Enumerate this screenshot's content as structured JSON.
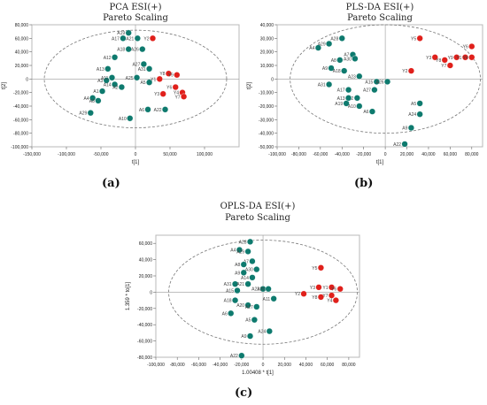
{
  "theme": {
    "teal": "#0e7a6e",
    "red": "#e0201b",
    "plot_bg": "#ffffff",
    "frame": "#c8c8c8",
    "ellipse": "#777777"
  },
  "captions": {
    "a": "(a)",
    "b": "(b)",
    "c": "(c)"
  },
  "chart_data": [
    {
      "type": "scatter",
      "title": "PCA ESI(+)",
      "subtitle": "Pareto Scaling",
      "xlabel": "t[1]",
      "ylabel": "t[2]",
      "xlim": [
        -150000,
        150000
      ],
      "ylim": [
        -100000,
        80000
      ],
      "xticks": [
        -150000,
        -100000,
        -50000,
        0,
        50000,
        100000
      ],
      "xtick_labels": [
        "-150,000",
        "-100,000",
        "-50,000",
        "0",
        "50,000",
        "100,000"
      ],
      "yticks": [
        -100000,
        -80000,
        -60000,
        -40000,
        -20000,
        0,
        20000,
        40000,
        60000,
        80000
      ],
      "ytick_labels": [
        "-100,000",
        "-80,000",
        "-60,000",
        "-40,000",
        "-20,000",
        "0",
        "20,000",
        "40,000",
        "60,000",
        "80,000"
      ],
      "ellipse": {
        "rx": 132000,
        "ry": 72000
      },
      "grid": false,
      "series": [
        {
          "color": "#0e7a6e",
          "points": [
            {
              "label": "A19",
              "x": -10000,
              "y": 68000
            },
            {
              "label": "A17",
              "x": -18000,
              "y": 60000
            },
            {
              "label": "A21",
              "x": 3000,
              "y": 60000
            },
            {
              "label": "A26",
              "x": 10000,
              "y": 44000
            },
            {
              "label": "A18",
              "x": -10000,
              "y": 44000
            },
            {
              "label": "A12",
              "x": -30000,
              "y": 32000
            },
            {
              "label": "A27",
              "x": 12000,
              "y": 22000
            },
            {
              "label": "A13",
              "x": -40000,
              "y": 15000
            },
            {
              "label": "A31",
              "x": 20000,
              "y": 15000
            },
            {
              "label": "A3",
              "x": -42000,
              "y": -2000
            },
            {
              "label": "A11",
              "x": -34000,
              "y": 2000
            },
            {
              "label": "A25",
              "x": 2000,
              "y": 2000
            },
            {
              "label": "A14",
              "x": -30000,
              "y": -8000
            },
            {
              "label": "A5",
              "x": 20000,
              "y": -5000
            },
            {
              "label": "A2",
              "x": -20000,
              "y": -12000
            },
            {
              "label": "A1",
              "x": -48000,
              "y": -18000
            },
            {
              "label": "A4",
              "x": -62000,
              "y": -28000
            },
            {
              "label": "A8",
              "x": -54000,
              "y": -32000
            },
            {
              "label": "A6",
              "x": 18000,
              "y": -45000
            },
            {
              "label": "A22",
              "x": 43000,
              "y": -45000
            },
            {
              "label": "A29",
              "x": -65000,
              "y": -50000
            },
            {
              "label": "A10",
              "x": -8000,
              "y": -58000
            }
          ]
        },
        {
          "color": "#e0201b",
          "points": [
            {
              "label": "Y2",
              "x": 25000,
              "y": 60000
            },
            {
              "label": "Y8",
              "x": 48000,
              "y": 8000
            },
            {
              "label": "Y9",
              "x": 60000,
              "y": 6000
            },
            {
              "label": "Y1",
              "x": 35000,
              "y": 0
            },
            {
              "label": "Y6",
              "x": 58000,
              "y": -12000
            },
            {
              "label": "Y3",
              "x": 40000,
              "y": -22000
            },
            {
              "label": "Y4",
              "x": 68000,
              "y": -20000
            },
            {
              "label": "Y7",
              "x": 70000,
              "y": -26000
            }
          ]
        }
      ]
    },
    {
      "type": "scatter",
      "title": "PLS-DA ESI(+)",
      "subtitle": "Pareto Scaling",
      "xlabel": "t[1]",
      "ylabel": "t[2]",
      "xlim": [
        -100000,
        90000
      ],
      "ylim": [
        -50000,
        40000
      ],
      "xticks": [
        -100000,
        -80000,
        -60000,
        -40000,
        -20000,
        0,
        20000,
        40000,
        60000,
        80000
      ],
      "xtick_labels": [
        "-100,000",
        "-80,000",
        "-60,000",
        "-40,000",
        "-20,000",
        "0",
        "20,000",
        "40,000",
        "60,000",
        "80,000"
      ],
      "yticks": [
        -50000,
        -40000,
        -30000,
        -20000,
        -10000,
        0,
        10000,
        20000,
        30000,
        40000
      ],
      "ytick_labels": [
        "-50,000",
        "-40,000",
        "-30,000",
        "-20,000",
        "-10,000",
        "0",
        "10,000",
        "20,000",
        "30,000",
        "40,000"
      ],
      "ellipse": {
        "rx": 88000,
        "ry": 40000
      },
      "grid": false,
      "series": [
        {
          "color": "#0e7a6e",
          "points": [
            {
              "label": "A29",
              "x": -52000,
              "y": 26000
            },
            {
              "label": "A28",
              "x": -40000,
              "y": 30000
            },
            {
              "label": "A4",
              "x": -62000,
              "y": 23000
            },
            {
              "label": "A7",
              "x": -30000,
              "y": 18000
            },
            {
              "label": "A8",
              "x": -42000,
              "y": 14000
            },
            {
              "label": "A30",
              "x": -28000,
              "y": 15000
            },
            {
              "label": "A9",
              "x": -50000,
              "y": 8000
            },
            {
              "label": "A18",
              "x": -38000,
              "y": 6000
            },
            {
              "label": "A23",
              "x": -24000,
              "y": 2000
            },
            {
              "label": "A15",
              "x": -8000,
              "y": -2000
            },
            {
              "label": "A26",
              "x": 2000,
              "y": -2000
            },
            {
              "label": "A31",
              "x": -52000,
              "y": -4000
            },
            {
              "label": "A17",
              "x": -34000,
              "y": -8000
            },
            {
              "label": "A27",
              "x": -10000,
              "y": -8000
            },
            {
              "label": "A12",
              "x": -26000,
              "y": -14000
            },
            {
              "label": "A19",
              "x": -36000,
              "y": -18000
            },
            {
              "label": "A13",
              "x": -34000,
              "y": -14000
            },
            {
              "label": "A10",
              "x": -24000,
              "y": -20000
            },
            {
              "label": "A6",
              "x": -12000,
              "y": -24000
            },
            {
              "label": "A5",
              "x": 32000,
              "y": -18000
            },
            {
              "label": "A24",
              "x": 32000,
              "y": -26000
            },
            {
              "label": "A9",
              "x": 24000,
              "y": -36000
            },
            {
              "label": "A22",
              "x": 18000,
              "y": -48000
            }
          ]
        },
        {
          "color": "#e0201b",
          "points": [
            {
              "label": "Y5",
              "x": 32000,
              "y": 30000
            },
            {
              "label": "Y6",
              "x": 80000,
              "y": 24000
            },
            {
              "label": "Y3",
              "x": 46000,
              "y": 16000
            },
            {
              "label": "Y8",
              "x": 55000,
              "y": 14000
            },
            {
              "label": "Y9",
              "x": 66000,
              "y": 16000
            },
            {
              "label": "Y1",
              "x": 74000,
              "y": 16000
            },
            {
              "label": "Y4",
              "x": 80000,
              "y": 16000
            },
            {
              "label": "Y7",
              "x": 60000,
              "y": 10000
            },
            {
              "label": "Y2",
              "x": 24000,
              "y": 6000
            }
          ]
        }
      ]
    },
    {
      "type": "scatter",
      "title": "OPLS-DA ESI(+)",
      "subtitle": "Pareto Scaling",
      "xlabel": "1.00408 * t[1]",
      "ylabel": "1.359 * to[1]",
      "xlim": [
        -100000,
        90000
      ],
      "ylim": [
        -80000,
        70000
      ],
      "xticks": [
        -100000,
        -80000,
        -60000,
        -40000,
        -20000,
        0,
        20000,
        40000,
        60000,
        80000
      ],
      "xtick_labels": [
        "-100,000",
        "-80,000",
        "-60,000",
        "-40,000",
        "-20,000",
        "0",
        "20,000",
        "40,000",
        "60,000",
        "80,000"
      ],
      "yticks": [
        -80000,
        -60000,
        -40000,
        -20000,
        0,
        20000,
        40000,
        60000
      ],
      "ytick_labels": [
        "-80,000",
        "-60,000",
        "-40,000",
        "-20,000",
        "0",
        "20,000",
        "40,000",
        "60,000"
      ],
      "ellipse": {
        "rx": 88000,
        "ry": 64000
      },
      "grid": false,
      "series": [
        {
          "color": "#0e7a6e",
          "points": [
            {
              "label": "A28",
              "x": -12000,
              "y": 62000
            },
            {
              "label": "A4",
              "x": -22000,
              "y": 52000
            },
            {
              "label": "A29",
              "x": -14000,
              "y": 50000
            },
            {
              "label": "A7",
              "x": -10000,
              "y": 38000
            },
            {
              "label": "A8",
              "x": -18000,
              "y": 34000
            },
            {
              "label": "A30",
              "x": -6000,
              "y": 28000
            },
            {
              "label": "A9",
              "x": -18000,
              "y": 24000
            },
            {
              "label": "A14",
              "x": -10000,
              "y": 18000
            },
            {
              "label": "A31",
              "x": -26000,
              "y": 10000
            },
            {
              "label": "A21",
              "x": -14000,
              "y": 10000
            },
            {
              "label": "A23",
              "x": 0,
              "y": 4000
            },
            {
              "label": "A26",
              "x": 5000,
              "y": 4000
            },
            {
              "label": "A15",
              "x": -24000,
              "y": 2000
            },
            {
              "label": "A11",
              "x": 10000,
              "y": -8000
            },
            {
              "label": "A18",
              "x": -26000,
              "y": -10000
            },
            {
              "label": "A20",
              "x": -14000,
              "y": -16000
            },
            {
              "label": "A27",
              "x": -6000,
              "y": -18000
            },
            {
              "label": "A6",
              "x": -30000,
              "y": -26000
            },
            {
              "label": "A5",
              "x": -8000,
              "y": -34000
            },
            {
              "label": "A24",
              "x": 6000,
              "y": -48000
            },
            {
              "label": "A9",
              "x": -12000,
              "y": -54000
            },
            {
              "label": "A22",
              "x": -20000,
              "y": -78000
            }
          ]
        },
        {
          "color": "#e0201b",
          "points": [
            {
              "label": "Y5",
              "x": 54000,
              "y": 30000
            },
            {
              "label": "Y3",
              "x": 52000,
              "y": 6000
            },
            {
              "label": "Y1",
              "x": 64000,
              "y": 6000
            },
            {
              "label": "Y6",
              "x": 72000,
              "y": 4000
            },
            {
              "label": "Y2",
              "x": 38000,
              "y": -2000
            },
            {
              "label": "Y8",
              "x": 54000,
              "y": -6000
            },
            {
              "label": "Y7",
              "x": 64000,
              "y": -4000
            },
            {
              "label": "Y4",
              "x": 68000,
              "y": -10000
            }
          ]
        }
      ]
    }
  ]
}
